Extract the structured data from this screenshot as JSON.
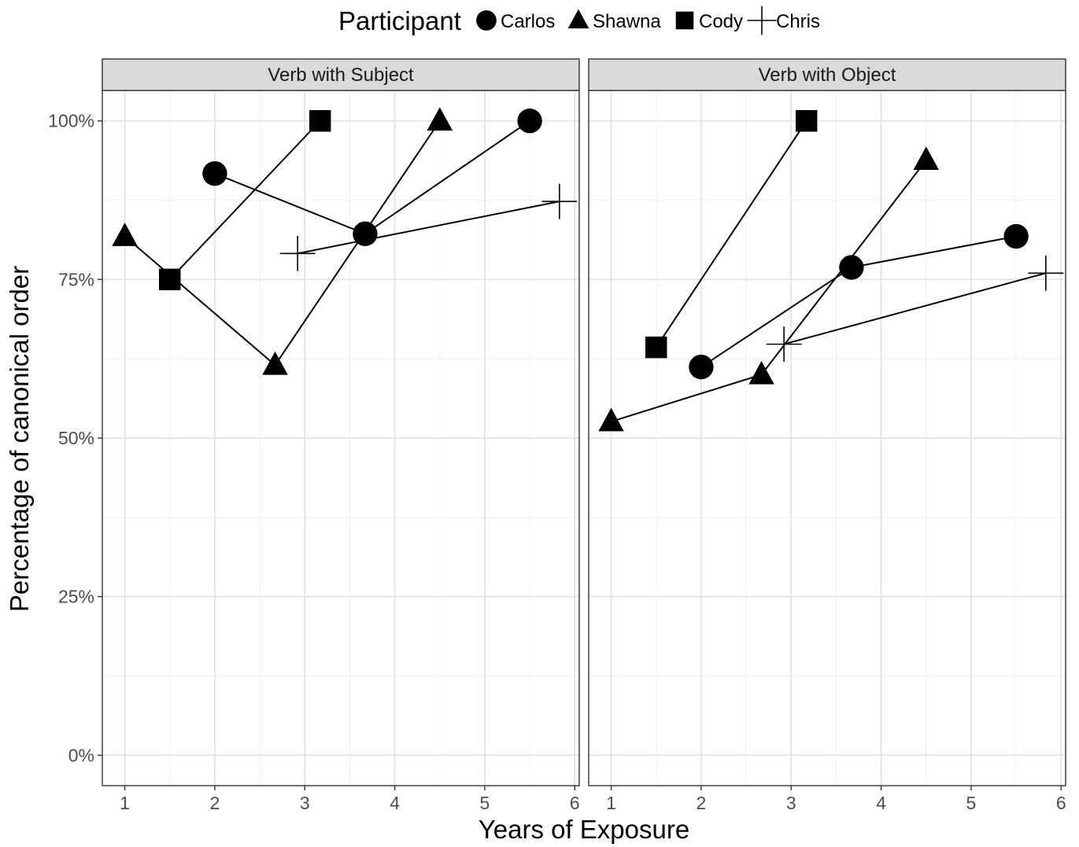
{
  "chart_data": {
    "type": "line",
    "xlabel": "Years of Exposure",
    "ylabel": "Percentage of canonical order",
    "xlim": [
      0.75,
      6.05
    ],
    "ylim": [
      -0.048,
      1.048
    ],
    "x_ticks": [
      1,
      2,
      3,
      4,
      5,
      6
    ],
    "y_ticks": [
      0,
      0.25,
      0.5,
      0.75,
      1.0
    ],
    "y_tick_labels": [
      "0%",
      "25%",
      "50%",
      "75%",
      "100%"
    ],
    "legend": {
      "title": "Participant",
      "position": "top",
      "entries": [
        {
          "name": "Carlos",
          "shape": "circle"
        },
        {
          "name": "Shawna",
          "shape": "triangle"
        },
        {
          "name": "Cody",
          "shape": "square"
        },
        {
          "name": "Chris",
          "shape": "plus"
        }
      ]
    },
    "grid": true,
    "panels": [
      {
        "title": "Verb with Subject",
        "series": [
          {
            "name": "Carlos",
            "shape": "circle",
            "points": [
              [
                2.0,
                0.917
              ],
              [
                3.67,
                0.822
              ],
              [
                5.5,
                1.0
              ]
            ]
          },
          {
            "name": "Shawna",
            "shape": "triangle",
            "points": [
              [
                1.0,
                0.818
              ],
              [
                2.67,
                0.615
              ],
              [
                4.5,
                1.0
              ]
            ]
          },
          {
            "name": "Cody",
            "shape": "square",
            "points": [
              [
                1.5,
                0.75
              ],
              [
                3.17,
                1.0
              ]
            ]
          },
          {
            "name": "Chris",
            "shape": "plus",
            "points": [
              [
                2.92,
                0.791
              ],
              [
                5.83,
                0.873
              ]
            ]
          }
        ]
      },
      {
        "title": "Verb with Object",
        "series": [
          {
            "name": "Carlos",
            "shape": "circle",
            "points": [
              [
                2.0,
                0.612
              ],
              [
                3.67,
                0.769
              ],
              [
                5.5,
                0.818
              ]
            ]
          },
          {
            "name": "Shawna",
            "shape": "triangle",
            "points": [
              [
                1.0,
                0.526
              ],
              [
                2.67,
                0.6
              ],
              [
                4.5,
                0.938
              ]
            ]
          },
          {
            "name": "Cody",
            "shape": "square",
            "points": [
              [
                1.5,
                0.643
              ],
              [
                3.17,
                1.0
              ]
            ]
          },
          {
            "name": "Chris",
            "shape": "plus",
            "points": [
              [
                2.92,
                0.648
              ],
              [
                5.83,
                0.76
              ]
            ]
          }
        ]
      }
    ]
  }
}
